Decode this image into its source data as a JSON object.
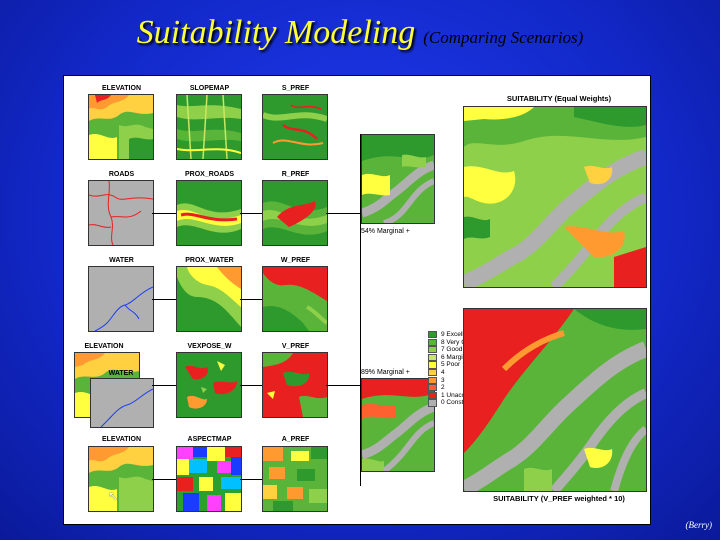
{
  "title": "Suitability Modeling",
  "subtitle": "(Comparing Scenarios)",
  "credit": "(Berry)",
  "rows": [
    {
      "labels": [
        "ELEVATION",
        "SLOPEMAP",
        "S_PREF"
      ]
    },
    {
      "labels": [
        "ROADS",
        "PROX_ROADS",
        "R_PREF"
      ]
    },
    {
      "labels": [
        "WATER",
        "PROX_WATER",
        "W_PREF"
      ]
    },
    {
      "labels": [
        "ELEVATION",
        "VEXPOSE_W",
        "V_PREF"
      ],
      "inset_label": "WATER"
    },
    {
      "labels": [
        "ELEVATION",
        "ASPECTMAP",
        "A_PREF"
      ]
    }
  ],
  "result_top": {
    "title": "SUITABILITY (Equal Weights)",
    "note": "54% Marginal +"
  },
  "result_bottom": {
    "title": "SUITABILITY (V_PREF weighted * 10)",
    "note": "89% Marginal +"
  },
  "legend": [
    {
      "label": "9 Excellent",
      "color": "#2e9a2e"
    },
    {
      "label": "8 Very Good",
      "color": "#5ab43a"
    },
    {
      "label": "7 Good",
      "color": "#8fd04a"
    },
    {
      "label": "6 Marginal",
      "color": "#c8e860"
    },
    {
      "label": "5 Poor",
      "color": "#ffff40"
    },
    {
      "label": "4",
      "color": "#ffd040"
    },
    {
      "label": "3",
      "color": "#ff9a30"
    },
    {
      "label": "2",
      "color": "#ff6030"
    },
    {
      "label": "1 Unacceptable",
      "color": "#e82020"
    },
    {
      "label": "0 Constrained",
      "color": "#b0b0b0"
    }
  ],
  "colors": {
    "background": "#1228c8",
    "title": "#ffff33",
    "green_dark": "#2e9a2e",
    "green": "#5ab43a",
    "green_light": "#8fd04a",
    "yellow": "#ffff40",
    "orange": "#ff9a30",
    "red": "#e82020",
    "gray": "#b0b0b0"
  }
}
